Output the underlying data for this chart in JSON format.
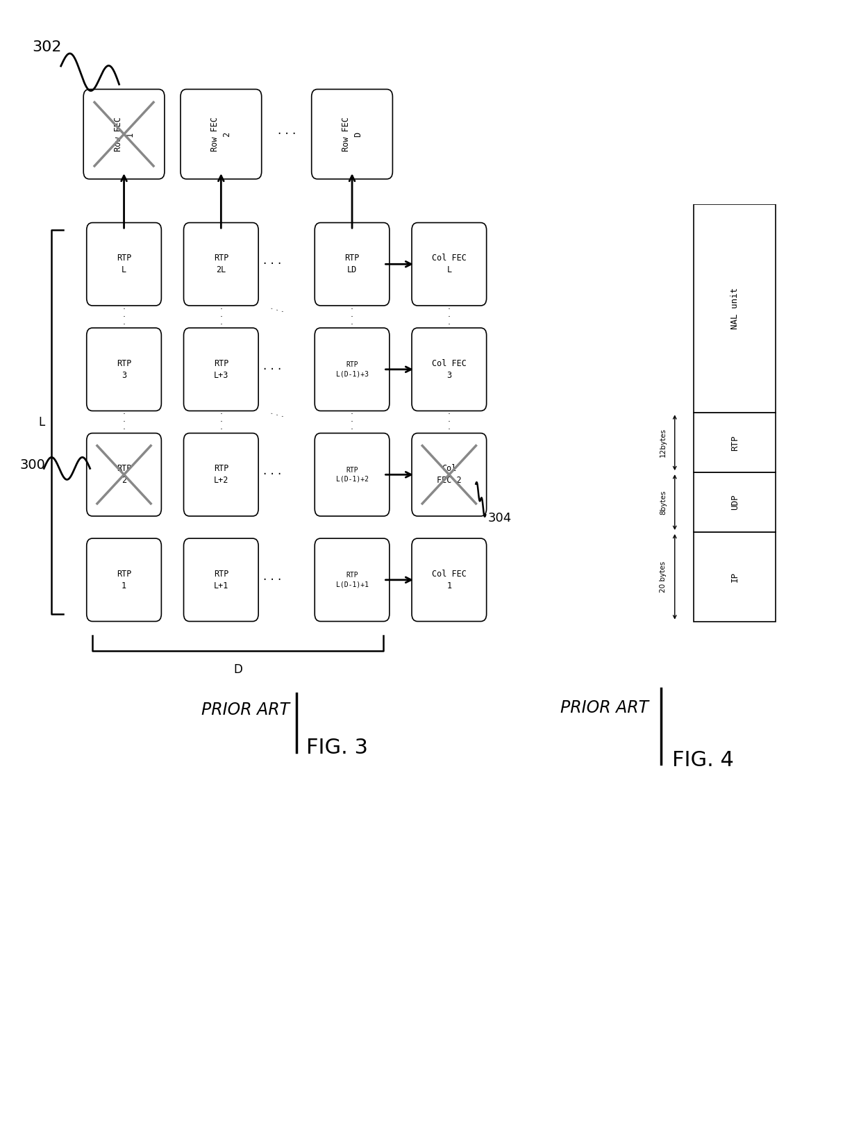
{
  "fig_width": 12.4,
  "fig_height": 16.34,
  "bg_color": "#ffffff",
  "box_edge": "#000000",
  "gray_color": "#999999",
  "rtp_rows": [
    {
      "row": 4,
      "cells": [
        "RTP\nL",
        "RTP\n2L",
        "RTP\nLD"
      ],
      "arrow_right": true
    },
    {
      "row": 3,
      "cells": [
        "RTP\n3",
        "RTP\nL+3",
        "RTP\nL(D-1)+3"
      ],
      "arrow_right": true
    },
    {
      "row": 2,
      "cells": [
        "RTP\n2",
        "RTP\nL+2",
        "RTP\nL(D-1)+2"
      ],
      "arrow_right": true,
      "cross_col0": true
    },
    {
      "row": 1,
      "cells": [
        "RTP\n1",
        "RTP\nL+1",
        "RTP\nL(D-1)+1"
      ],
      "arrow_right": true
    }
  ],
  "col_fec_labels": [
    "Col FEC\nL",
    "Col FEC\n3",
    "Col\nFEC 2",
    "Col FEC\n1"
  ],
  "col_fec_cross": [
    false,
    false,
    true,
    false
  ],
  "row_fec_labels": [
    "Row FEC\n1",
    "Row FEC\n2",
    "Row FEC\nD"
  ],
  "row_fec_cross": [
    true,
    false,
    false
  ]
}
